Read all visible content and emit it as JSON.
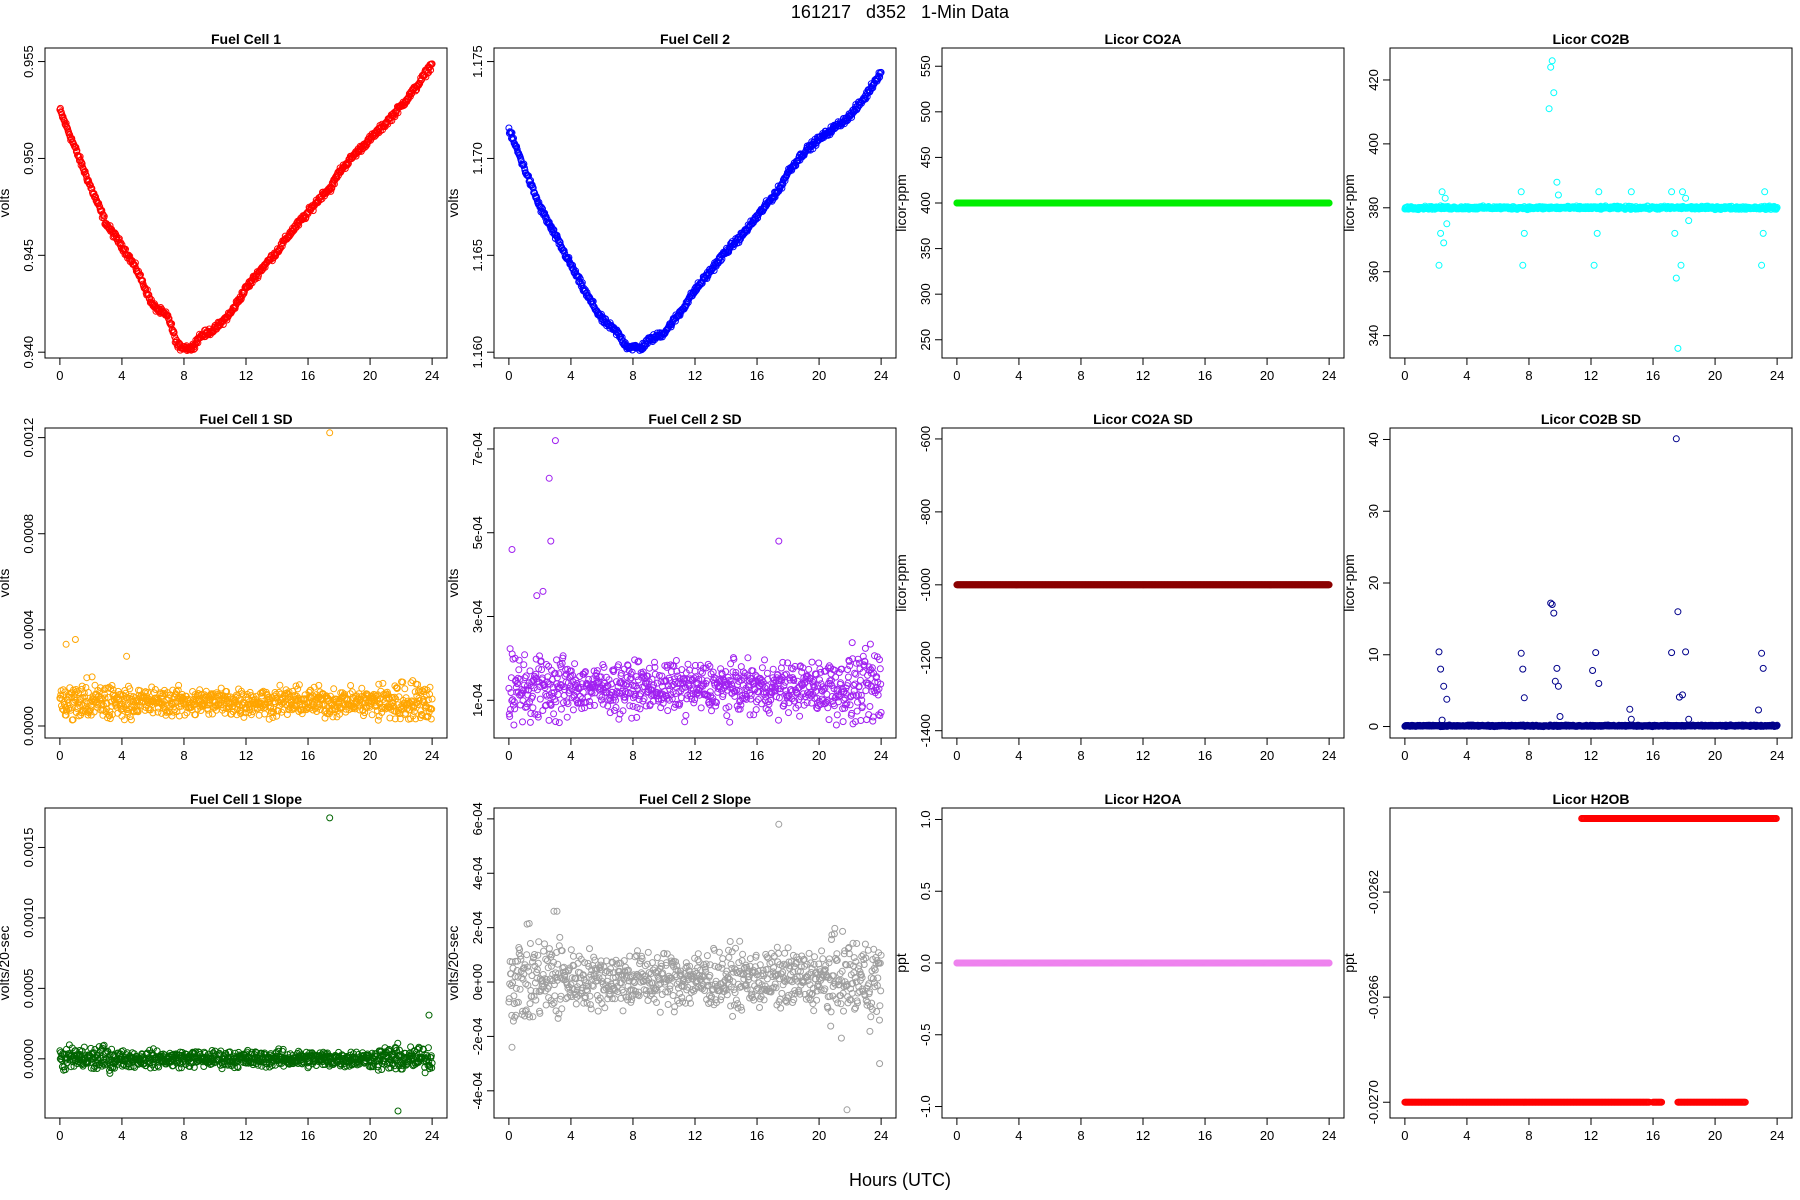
{
  "page": {
    "title": "161217   d352   1-Min Data",
    "xlabel": "Hours (UTC)"
  },
  "chart_data": [
    {
      "type": "scatter",
      "title": "Fuel Cell 1",
      "ylabel": "volts",
      "color": "#ff0000",
      "xlim": [
        -0.96,
        24.96
      ],
      "ylim": [
        0.9397,
        0.9557
      ],
      "xticks": [
        "0",
        "4",
        "8",
        "12",
        "16",
        "20",
        "24"
      ],
      "xtick_values": [
        0,
        4,
        8,
        12,
        16,
        20,
        24
      ],
      "yticks": [
        "0.940",
        "0.945",
        "0.950",
        "0.955"
      ],
      "ytick_values": [
        0.94,
        0.945,
        0.95,
        0.955
      ],
      "pattern": "curve",
      "curve": [
        [
          0,
          0.9525
        ],
        [
          1,
          0.9505
        ],
        [
          2,
          0.9485
        ],
        [
          3,
          0.9466
        ],
        [
          4,
          0.9455
        ],
        [
          5,
          0.9442
        ],
        [
          6,
          0.9424
        ],
        [
          7,
          0.9418
        ],
        [
          7.6,
          0.9403
        ],
        [
          8.5,
          0.9402
        ],
        [
          9,
          0.9408
        ],
        [
          10,
          0.9412
        ],
        [
          11,
          0.942
        ],
        [
          12,
          0.9433
        ],
        [
          13,
          0.9443
        ],
        [
          14,
          0.9452
        ],
        [
          15,
          0.9463
        ],
        [
          16,
          0.9472
        ],
        [
          17,
          0.9482
        ],
        [
          17.5,
          0.9485
        ],
        [
          18,
          0.9493
        ],
        [
          19,
          0.9502
        ],
        [
          20,
          0.951
        ],
        [
          21,
          0.9518
        ],
        [
          22,
          0.9527
        ],
        [
          23,
          0.9537
        ],
        [
          24,
          0.9549
        ]
      ],
      "spread": 0.0003
    },
    {
      "type": "scatter",
      "title": "Fuel Cell 2",
      "ylabel": "volts",
      "color": "#0000ff",
      "xlim": [
        -0.96,
        24.96
      ],
      "ylim": [
        1.1597,
        1.1757
      ],
      "xticks": [
        "0",
        "4",
        "8",
        "12",
        "16",
        "20",
        "24"
      ],
      "xtick_values": [
        0,
        4,
        8,
        12,
        16,
        20,
        24
      ],
      "yticks": [
        "1.160",
        "1.165",
        "1.170",
        "1.175"
      ],
      "ytick_values": [
        1.16,
        1.165,
        1.17,
        1.175
      ],
      "pattern": "curve",
      "curve": [
        [
          0,
          1.1715
        ],
        [
          1,
          1.1695
        ],
        [
          2,
          1.1675
        ],
        [
          3,
          1.166
        ],
        [
          4,
          1.1645
        ],
        [
          5,
          1.163
        ],
        [
          6,
          1.1617
        ],
        [
          7,
          1.161
        ],
        [
          7.6,
          1.1603
        ],
        [
          8.5,
          1.1602
        ],
        [
          9,
          1.1606
        ],
        [
          10,
          1.161
        ],
        [
          11,
          1.162
        ],
        [
          12,
          1.1632
        ],
        [
          13,
          1.1642
        ],
        [
          14,
          1.1652
        ],
        [
          15,
          1.166
        ],
        [
          16,
          1.167
        ],
        [
          17,
          1.168
        ],
        [
          17.5,
          1.1685
        ],
        [
          18,
          1.1693
        ],
        [
          19,
          1.1703
        ],
        [
          20,
          1.171
        ],
        [
          21,
          1.1716
        ],
        [
          22,
          1.1722
        ],
        [
          23,
          1.1732
        ],
        [
          24,
          1.1745
        ]
      ],
      "spread": 0.0003
    },
    {
      "type": "scatter",
      "title": "Licor CO2A",
      "ylabel": "licor-ppm",
      "color": "#00ee00",
      "xlim": [
        -0.96,
        24.96
      ],
      "ylim": [
        230,
        570
      ],
      "xticks": [
        "0",
        "4",
        "8",
        "12",
        "16",
        "20",
        "24"
      ],
      "xtick_values": [
        0,
        4,
        8,
        12,
        16,
        20,
        24
      ],
      "yticks": [
        "250",
        "300",
        "350",
        "400",
        "450",
        "500",
        "550"
      ],
      "ytick_values": [
        250,
        300,
        350,
        400,
        450,
        500,
        550
      ],
      "pattern": "constant",
      "level": 400,
      "spread": 0
    },
    {
      "type": "scatter",
      "title": "Licor CO2B",
      "ylabel": "licor-ppm",
      "color": "#00ffff",
      "xlim": [
        -0.96,
        24.96
      ],
      "ylim": [
        333,
        430
      ],
      "xticks": [
        "0",
        "4",
        "8",
        "12",
        "16",
        "20",
        "24"
      ],
      "xtick_values": [
        0,
        4,
        8,
        12,
        16,
        20,
        24
      ],
      "yticks": [
        "340",
        "360",
        "380",
        "400",
        "420"
      ],
      "ytick_values": [
        340,
        360,
        380,
        400,
        420
      ],
      "pattern": "constant",
      "level": 380,
      "spread": 0.4,
      "outliers": [
        [
          2.2,
          362
        ],
        [
          2.3,
          372
        ],
        [
          2.4,
          385
        ],
        [
          2.5,
          369
        ],
        [
          2.6,
          383
        ],
        [
          2.7,
          375
        ],
        [
          7.5,
          385
        ],
        [
          7.6,
          362
        ],
        [
          7.7,
          372
        ],
        [
          9.3,
          411
        ],
        [
          9.4,
          424
        ],
        [
          9.5,
          426
        ],
        [
          9.6,
          416
        ],
        [
          9.8,
          388
        ],
        [
          9.9,
          384
        ],
        [
          12.2,
          362
        ],
        [
          12.4,
          372
        ],
        [
          12.5,
          385
        ],
        [
          14.6,
          385
        ],
        [
          17.2,
          385
        ],
        [
          17.4,
          372
        ],
        [
          17.5,
          358
        ],
        [
          17.6,
          336
        ],
        [
          17.8,
          362
        ],
        [
          17.9,
          385
        ],
        [
          18.1,
          383
        ],
        [
          18.3,
          376
        ],
        [
          23.0,
          362
        ],
        [
          23.1,
          372
        ],
        [
          23.2,
          385
        ]
      ]
    },
    {
      "type": "scatter",
      "title": "Fuel Cell 1 SD",
      "ylabel": "volts",
      "color": "#ffa500",
      "xlim": [
        -0.96,
        24.96
      ],
      "ylim": [
        -5e-05,
        0.00124
      ],
      "xticks": [
        "0",
        "4",
        "8",
        "12",
        "16",
        "20",
        "24"
      ],
      "xtick_values": [
        0,
        4,
        8,
        12,
        16,
        20,
        24
      ],
      "yticks": [
        "0.0000",
        "0.0004",
        "0.0008",
        "0.0012"
      ],
      "ytick_values": [
        0,
        0.0004,
        0.0008,
        0.0012
      ],
      "pattern": "noise",
      "level": 0.0001,
      "spread": 5e-05,
      "min": 2e-05,
      "outliers": [
        [
          17.4,
          0.00122
        ],
        [
          1.0,
          0.00036
        ],
        [
          0.4,
          0.00034
        ],
        [
          4.3,
          0.00029
        ]
      ]
    },
    {
      "type": "scatter",
      "title": "Fuel Cell 2 SD",
      "ylabel": "volts",
      "color": "#a020f0",
      "xlim": [
        -0.96,
        24.96
      ],
      "ylim": [
        1e-05,
        0.00075
      ],
      "xticks": [
        "0",
        "4",
        "8",
        "12",
        "16",
        "20",
        "24"
      ],
      "xtick_values": [
        0,
        4,
        8,
        12,
        16,
        20,
        24
      ],
      "yticks": [
        "1e-04",
        "3e-04",
        "5e-04",
        "7e-04"
      ],
      "ytick_values": [
        0.0001,
        0.0003,
        0.0005,
        0.0007
      ],
      "pattern": "noise",
      "level": 0.00013,
      "spread": 5e-05,
      "min": 4e-05,
      "outliers": [
        [
          0.2,
          0.00046
        ],
        [
          2.6,
          0.00063
        ],
        [
          3.0,
          0.00072
        ],
        [
          2.7,
          0.00048
        ],
        [
          17.4,
          0.00048
        ],
        [
          1.8,
          0.00035
        ],
        [
          2.2,
          0.00036
        ]
      ]
    },
    {
      "type": "scatter",
      "title": "Licor CO2A SD",
      "ylabel": "licor-ppm",
      "color": "#8b0000",
      "xlim": [
        -0.96,
        24.96
      ],
      "ylim": [
        -1420,
        -570
      ],
      "xticks": [
        "0",
        "4",
        "8",
        "12",
        "16",
        "20",
        "24"
      ],
      "xtick_values": [
        0,
        4,
        8,
        12,
        16,
        20,
        24
      ],
      "yticks": [
        "-1400",
        "-1200",
        "-1000",
        "-800",
        "-600"
      ],
      "ytick_values": [
        -1400,
        -1200,
        -1000,
        -800,
        -600
      ],
      "pattern": "constant",
      "level": -1000,
      "spread": 0
    },
    {
      "type": "scatter",
      "title": "Licor CO2B SD",
      "ylabel": "licor-ppm",
      "color": "#00008b",
      "xlim": [
        -0.96,
        24.96
      ],
      "ylim": [
        -1.6,
        41.6
      ],
      "xticks": [
        "0",
        "4",
        "8",
        "12",
        "16",
        "20",
        "24"
      ],
      "xtick_values": [
        0,
        4,
        8,
        12,
        16,
        20,
        24
      ],
      "yticks": [
        "0",
        "10",
        "20",
        "30",
        "40"
      ],
      "ytick_values": [
        0,
        10,
        20,
        30,
        40
      ],
      "pattern": "constant",
      "level": 0.1,
      "spread": 0.08,
      "outliers": [
        [
          2.2,
          10.4
        ],
        [
          2.3,
          8.0
        ],
        [
          2.5,
          5.6
        ],
        [
          2.7,
          3.8
        ],
        [
          2.4,
          0.9
        ],
        [
          7.5,
          10.2
        ],
        [
          7.6,
          8.0
        ],
        [
          7.7,
          4.0
        ],
        [
          9.4,
          17.2
        ],
        [
          9.5,
          17.0
        ],
        [
          9.6,
          15.8
        ],
        [
          9.8,
          8.1
        ],
        [
          9.7,
          6.3
        ],
        [
          9.9,
          5.6
        ],
        [
          10.0,
          1.4
        ],
        [
          12.1,
          7.8
        ],
        [
          12.3,
          10.3
        ],
        [
          12.5,
          6.0
        ],
        [
          14.5,
          2.4
        ],
        [
          14.6,
          1.0
        ],
        [
          17.2,
          10.3
        ],
        [
          17.5,
          40.1
        ],
        [
          17.6,
          16.0
        ],
        [
          17.7,
          4.1
        ],
        [
          17.9,
          4.4
        ],
        [
          18.1,
          10.4
        ],
        [
          18.3,
          1.0
        ],
        [
          23.0,
          10.2
        ],
        [
          23.1,
          8.1
        ],
        [
          22.8,
          2.3
        ]
      ]
    },
    {
      "type": "scatter",
      "title": "Fuel Cell 1 Slope",
      "ylabel": "volts/20-sec",
      "color": "#006400",
      "xlim": [
        -0.96,
        24.96
      ],
      "ylim": [
        -0.00042,
        0.00178
      ],
      "xticks": [
        "0",
        "4",
        "8",
        "12",
        "16",
        "20",
        "24"
      ],
      "xtick_values": [
        0,
        4,
        8,
        12,
        16,
        20,
        24
      ],
      "yticks": [
        "0.0000",
        "0.0005",
        "0.0010",
        "0.0015"
      ],
      "ytick_values": [
        0,
        0.0005,
        0.001,
        0.0015
      ],
      "pattern": "noise",
      "level": 0.0,
      "spread": 5e-05,
      "outliers": [
        [
          17.4,
          0.00171
        ],
        [
          21.8,
          -0.00037
        ],
        [
          23.8,
          0.00031
        ]
      ]
    },
    {
      "type": "scatter",
      "title": "Fuel Cell 2 Slope",
      "ylabel": "volts/20-sec",
      "color": "#9e9e9e",
      "xlim": [
        -0.96,
        24.96
      ],
      "ylim": [
        -0.0005,
        0.00064
      ],
      "xticks": [
        "0",
        "4",
        "8",
        "12",
        "16",
        "20",
        "24"
      ],
      "xtick_values": [
        0,
        4,
        8,
        12,
        16,
        20,
        24
      ],
      "yticks": [
        "-4e-04",
        "-2e-04",
        "0e+00",
        "2e-04",
        "4e-04",
        "6e-04"
      ],
      "ytick_values": [
        -0.0004,
        -0.0002,
        0,
        0.0002,
        0.0004,
        0.0006
      ],
      "pattern": "noise",
      "level": 1e-05,
      "spread": 9e-05,
      "outliers": [
        [
          17.4,
          0.00058
        ],
        [
          21.8,
          -0.00047
        ],
        [
          0.2,
          -0.00024
        ],
        [
          2.9,
          0.00026
        ],
        [
          3.1,
          0.00026
        ],
        [
          23.9,
          -0.0003
        ]
      ]
    },
    {
      "type": "scatter",
      "title": "Licor H2OA",
      "ylabel": "ppt",
      "color": "#ee82ee",
      "xlim": [
        -0.96,
        24.96
      ],
      "ylim": [
        -1.08,
        1.08
      ],
      "xticks": [
        "0",
        "4",
        "8",
        "12",
        "16",
        "20",
        "24"
      ],
      "xtick_values": [
        0,
        4,
        8,
        12,
        16,
        20,
        24
      ],
      "yticks": [
        "-1.0",
        "-0.5",
        "0.0",
        "0.5",
        "1.0"
      ],
      "ytick_values": [
        -1,
        -0.5,
        0,
        0.5,
        1
      ],
      "pattern": "constant",
      "level": 0,
      "spread": 0
    },
    {
      "type": "scatter",
      "title": "Licor H2OB",
      "ylabel": "ppt",
      "color": "#ff0000",
      "xlim": [
        -0.96,
        24.96
      ],
      "ylim": [
        -0.02706,
        -0.02588
      ],
      "xticks": [
        "0",
        "4",
        "8",
        "12",
        "16",
        "20",
        "24"
      ],
      "xtick_values": [
        0,
        4,
        8,
        12,
        16,
        20,
        24
      ],
      "yticks": [
        "-0.0270",
        "-0.0266",
        "-0.0262"
      ],
      "ytick_values": [
        -0.027,
        -0.0266,
        -0.0262
      ],
      "pattern": "twolevel",
      "low": -0.027,
      "high": -0.02592,
      "low_segments": [
        [
          0,
          15.8
        ],
        [
          16.0,
          16.6
        ],
        [
          17.6,
          22.0
        ]
      ],
      "high_segments": [
        [
          11.4,
          24.0
        ]
      ]
    }
  ]
}
